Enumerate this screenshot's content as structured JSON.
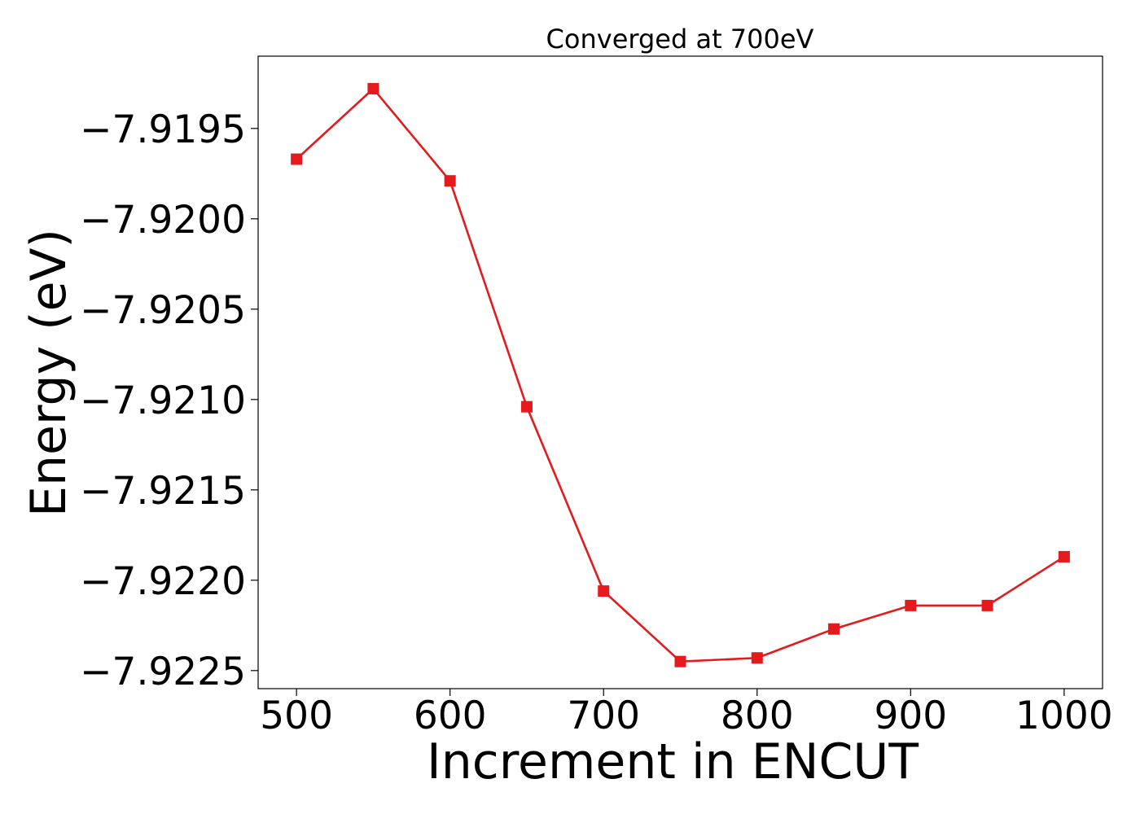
{
  "chart_data": {
    "type": "line",
    "title": "Converged at 700eV",
    "xlabel": "Increment in ENCUT",
    "ylabel": "Energy (eV)",
    "xlim": [
      475,
      1025
    ],
    "ylim": [
      -7.9226,
      -7.9191
    ],
    "x_ticks": [
      500,
      600,
      700,
      800,
      900,
      1000
    ],
    "x_tick_labels": [
      "500",
      "600",
      "700",
      "800",
      "900",
      "1000"
    ],
    "y_ticks": [
      -7.9195,
      -7.92,
      -7.9205,
      -7.921,
      -7.9215,
      -7.922,
      -7.9225
    ],
    "y_tick_labels": [
      "−7.9195",
      "−7.9200",
      "−7.9205",
      "−7.9210",
      "−7.9215",
      "−7.9220",
      "−7.9225"
    ],
    "grid": false,
    "series": [
      {
        "color": "#e41a1c",
        "marker": "square",
        "x": [
          500,
          550,
          600,
          650,
          700,
          750,
          800,
          850,
          900,
          950,
          1000
        ],
        "y": [
          -7.91967,
          -7.91928,
          -7.91979,
          -7.92104,
          -7.92206,
          -7.92245,
          -7.92243,
          -7.92227,
          -7.92214,
          -7.92214,
          -7.92187
        ]
      }
    ]
  }
}
